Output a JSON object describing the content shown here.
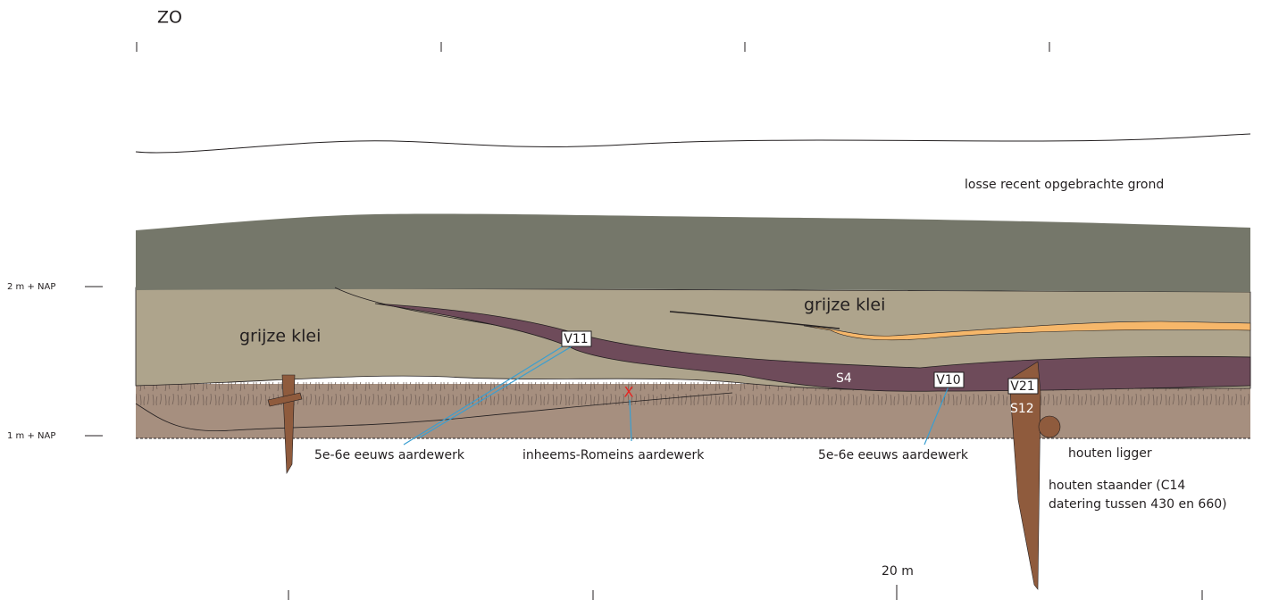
{
  "header": {
    "direction": "ZO"
  },
  "levels": [
    "2 m + NAP",
    "1 m + NAP"
  ],
  "layers": {
    "top": "losse recent opgebrachte grond",
    "clay_left": "grijze klei",
    "clay_right": "grijze klei"
  },
  "features": {
    "v11": "V11",
    "v10": "V10",
    "v21": "V21",
    "s4": "S4",
    "s12": "S12",
    "cross": "X"
  },
  "annotations": {
    "pottery_left": "5e-6e eeuws aardewerk",
    "native_roman": "inheems-Romeins aardewerk",
    "pottery_right": "5e-6e eeuws aardewerk",
    "beam": "houten ligger",
    "post_line1": "houten staander (C14",
    "post_line2": "datering tussen 430 en 660)"
  },
  "scale": "20 m"
}
